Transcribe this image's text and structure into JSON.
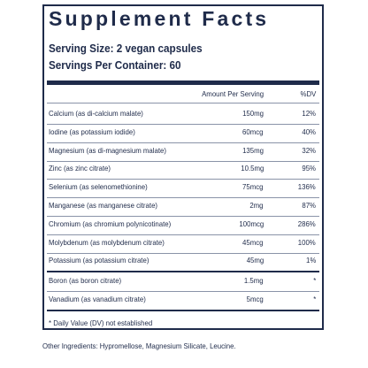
{
  "header": {
    "title": "Supplement Facts",
    "serving_size": "Serving Size: 2 vegan capsules",
    "servings_per_container": "Servings Per Container: 60"
  },
  "table": {
    "columns": [
      "Amount Per Serving",
      "%DV"
    ],
    "rows": [
      [
        "Calcium (as di-calcium malate)",
        "150mg",
        "12%"
      ],
      [
        "Iodine (as potassium iodide)",
        "60mcg",
        "40%"
      ],
      [
        "Magnesium (as di-magnesium malate)",
        "135mg",
        "32%"
      ],
      [
        "Zinc (as zinc citrate)",
        "10.5mg",
        "95%"
      ],
      [
        "Selenium (as selenomethionine)",
        "75mcg",
        "136%"
      ],
      [
        "Manganese (as manganese citrate)",
        "2mg",
        "87%"
      ],
      [
        "Chromium (as chromium polynicotinate)",
        "100mcg",
        "286%"
      ],
      [
        "Molybdenum (as molybdenum citrate)",
        "45mcg",
        "100%"
      ],
      [
        "Potassium (as potassium citrate)",
        "45mg",
        "1%"
      ],
      [
        "Boron (as boron citrate)",
        "1.5mg",
        "*"
      ],
      [
        "Vanadium (as vanadium citrate)",
        "5mcg",
        "*"
      ]
    ]
  },
  "footnote": "* Daily Value (DV) not established",
  "other_ingredients": "Other Ingredients: Hypromellose, Magnesium Silicate, Leucine."
}
